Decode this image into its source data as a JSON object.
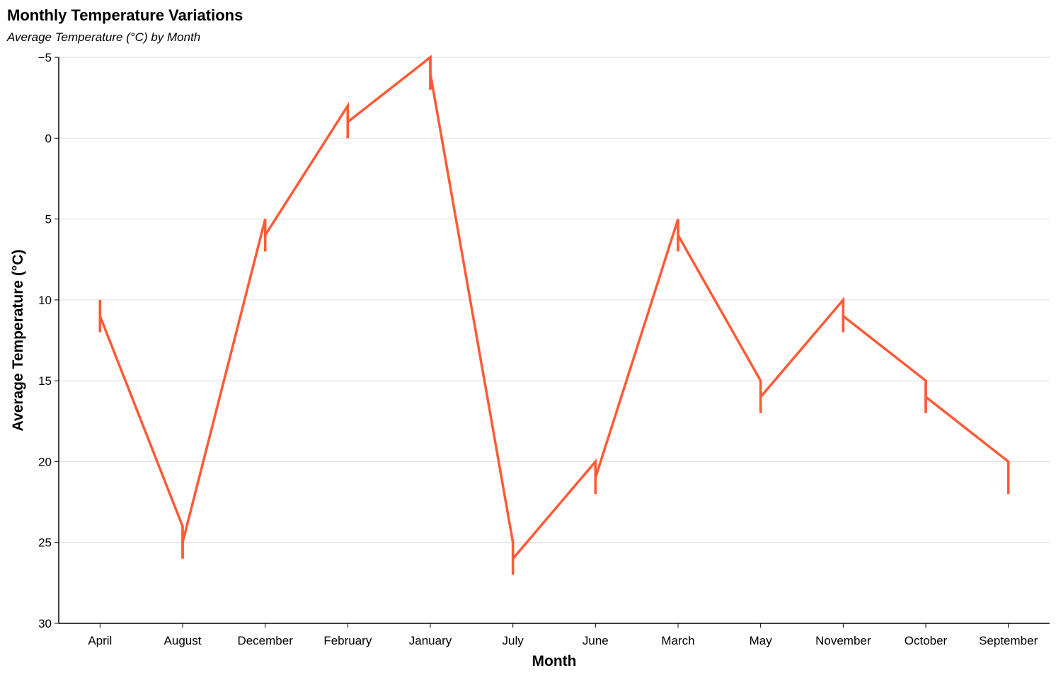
{
  "chart_data": {
    "type": "line",
    "title": "Monthly Temperature Variations",
    "subtitle": "Average Temperature (°C) by Month",
    "xlabel": "Month",
    "ylabel": "Average Temperature (°C)",
    "categories": [
      "April",
      "August",
      "December",
      "February",
      "January",
      "July",
      "June",
      "March",
      "May",
      "November",
      "October",
      "September"
    ],
    "series": [
      {
        "points": [
          [
            10,
            11,
            12
          ],
          [
            24,
            25,
            26
          ],
          [
            5,
            6,
            7
          ],
          [
            -2,
            -1,
            0
          ],
          [
            -5,
            -4,
            -3
          ],
          [
            25,
            26,
            27
          ],
          [
            20,
            21,
            22
          ],
          [
            5,
            6,
            7
          ],
          [
            15,
            16,
            17
          ],
          [
            10,
            11,
            12
          ],
          [
            15,
            16,
            17
          ],
          [
            20,
            20,
            22
          ]
        ]
      }
    ],
    "ylim": [
      -5,
      30
    ],
    "y_reversed": true,
    "y_ticks": [
      -5,
      0,
      5,
      10,
      15,
      20,
      25,
      30
    ],
    "grid": "horizontal",
    "colors": {
      "line": "#ff5a36",
      "grid": "#dddddd",
      "axis": "#000000"
    }
  }
}
